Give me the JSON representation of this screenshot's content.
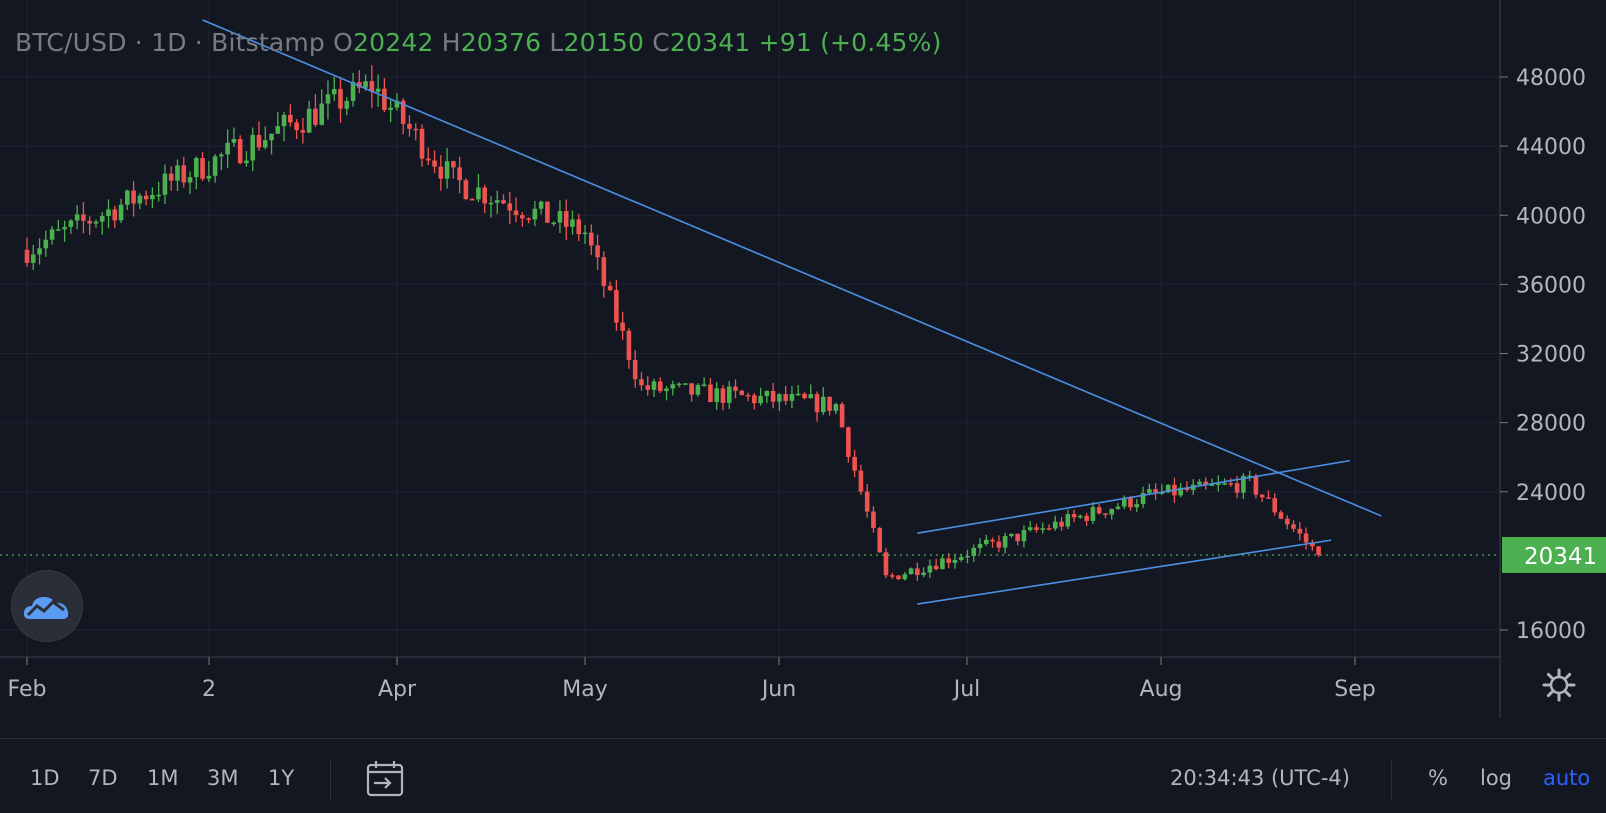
{
  "legend": {
    "symbol": "BTC/USD · 1D · Bitstamp",
    "open_label": "O",
    "open": "20242",
    "high_label": "H",
    "high": "20376",
    "low_label": "L",
    "low": "20150",
    "close_label": "C",
    "close": "20341",
    "change": "+91 (+0.45%)"
  },
  "colors": {
    "background": "#131722",
    "up": "#26a69a",
    "up_candle": "#4caf50",
    "down_candle": "#ef5350",
    "trendline": "#2196f3",
    "grid": "#1f2330",
    "axis_text": "#b2b5be",
    "price_tag": "#4caf50"
  },
  "toolbar": {
    "ranges": [
      "1D",
      "7D",
      "1M",
      "3M",
      "1Y"
    ],
    "clock": "20:34:43 (UTC-4)",
    "percent": "%",
    "log": "log",
    "auto": "auto",
    "calendar_icon": "calendar-range-icon",
    "settings_icon": "gear-icon"
  },
  "chart_data": {
    "type": "candlestick",
    "title": "BTC/USD · 1D · Bitstamp",
    "x_labels": [
      "Feb",
      "2",
      "Apr",
      "May",
      "Jun",
      "Jul",
      "Aug",
      "Sep"
    ],
    "y_ticks": [
      48000,
      44000,
      40000,
      36000,
      32000,
      28000,
      24000,
      16000
    ],
    "ylim": [
      14400,
      51000
    ],
    "last_price": 20341,
    "last_price_label": "20341",
    "key_points": [
      {
        "date": "Feb",
        "close": 38000
      },
      {
        "date": "Mar 28",
        "close": 47500
      },
      {
        "date": "Apr 10",
        "close": 42000
      },
      {
        "date": "May 1",
        "close": 39000
      },
      {
        "date": "May 10",
        "close": 30000
      },
      {
        "date": "Jun 10",
        "close": 29000
      },
      {
        "date": "Jun 18",
        "close": 19000
      },
      {
        "date": "Jul 30",
        "close": 23800
      },
      {
        "date": "Aug 15",
        "close": 24500
      },
      {
        "date": "Aug 26",
        "close": 20341
      }
    ],
    "trendlines": [
      {
        "name": "descending resistance",
        "from": {
          "date": "Mar 1",
          "price": 51300
        },
        "to": {
          "date": "Sep 5",
          "price": 22600
        }
      },
      {
        "name": "channel top",
        "from": {
          "date": "Jun 23",
          "price": 21600
        },
        "to": {
          "date": "Aug 31",
          "price": 25800
        }
      },
      {
        "name": "channel bottom",
        "from": {
          "date": "Jun 23",
          "price": 17500
        },
        "to": {
          "date": "Aug 28",
          "price": 21200
        }
      }
    ],
    "grid": true
  }
}
